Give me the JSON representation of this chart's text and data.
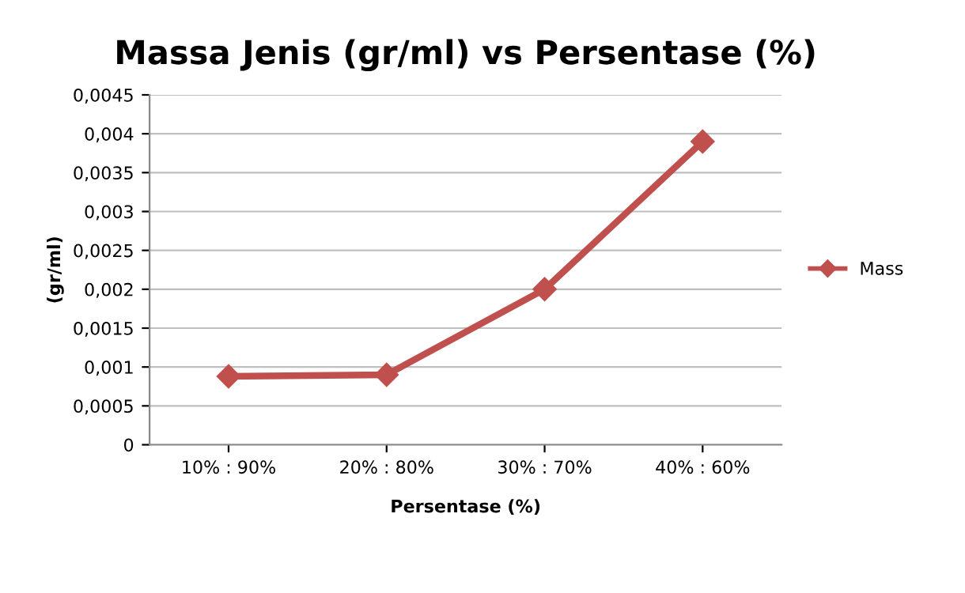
{
  "chart_data": {
    "type": "line",
    "title": "Massa Jenis (gr/ml) vs Persentase (%)",
    "xlabel": "Persentase (%)",
    "ylabel": "(gr/ml)",
    "categories": [
      "10% : 90%",
      "20% : 80%",
      "30% : 70%",
      "40% : 60%"
    ],
    "series": [
      {
        "name": "Mass",
        "color": "#c0504d",
        "values": [
          0.00088,
          0.0009,
          0.002,
          0.0039
        ]
      }
    ],
    "ylim": [
      0,
      0.0045
    ],
    "yticks": [
      0,
      {
        "value": 0.0005,
        "label": "0,0005"
      },
      {
        "value": 0.001,
        "label": "0,001"
      },
      {
        "value": 0.0015,
        "label": "0,0015"
      },
      {
        "value": 0.002,
        "label": "0,002"
      },
      {
        "value": 0.0025,
        "label": "0,0025"
      },
      {
        "value": 0.003,
        "label": "0,003"
      },
      {
        "value": 0.0035,
        "label": "0,0035"
      },
      {
        "value": 0.004,
        "label": "0,004"
      },
      {
        "value": 0.0045,
        "label": "0,0045"
      }
    ],
    "grid": "y",
    "legend": "right",
    "marker": "diamond",
    "line_style": "solid"
  }
}
